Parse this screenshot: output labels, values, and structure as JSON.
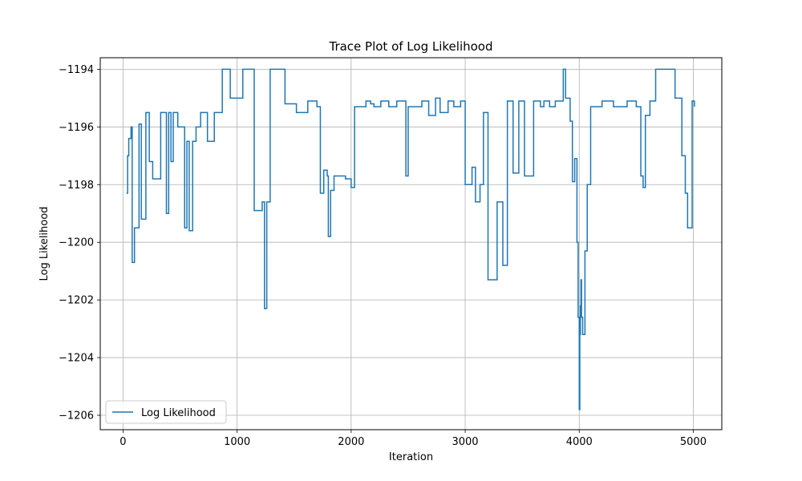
{
  "chart_data": {
    "type": "line",
    "title": "Trace Plot of Log Likelihood",
    "xlabel": "Iteration",
    "ylabel": "Log Likelihood",
    "xlim": [
      -200,
      5250
    ],
    "ylim": [
      -1206.5,
      -1193.6
    ],
    "xticks": [
      0,
      1000,
      2000,
      3000,
      4000,
      5000
    ],
    "yticks": [
      -1194,
      -1196,
      -1198,
      -1200,
      -1202,
      -1204,
      -1206
    ],
    "xtick_labels": [
      "0",
      "1000",
      "2000",
      "3000",
      "4000",
      "5000"
    ],
    "ytick_labels": [
      "−1194",
      "−1196",
      "−1198",
      "−1200",
      "−1202",
      "−1204",
      "−1206"
    ],
    "grid": true,
    "legend": "lower-left",
    "series": [
      {
        "name": "Log Likelihood",
        "color": "#1f77b4",
        "step": true,
        "x": [
          30,
          40,
          50,
          70,
          80,
          90,
          100,
          140,
          160,
          200,
          230,
          260,
          330,
          380,
          400,
          420,
          440,
          480,
          540,
          560,
          580,
          610,
          640,
          680,
          740,
          800,
          870,
          940,
          1050,
          1150,
          1220,
          1240,
          1260,
          1290,
          1320,
          1420,
          1520,
          1620,
          1700,
          1730,
          1760,
          1790,
          1800,
          1820,
          1850,
          1870,
          1950,
          2000,
          2030,
          2080,
          2130,
          2170,
          2200,
          2260,
          2330,
          2400,
          2480,
          2500,
          2540,
          2620,
          2680,
          2740,
          2780,
          2850,
          2900,
          2960,
          3000,
          3060,
          3090,
          3130,
          3160,
          3200,
          3280,
          3330,
          3370,
          3420,
          3470,
          3520,
          3600,
          3660,
          3690,
          3740,
          3790,
          3860,
          3880,
          3920,
          3940,
          3960,
          3980,
          3990,
          4000,
          4005,
          4010,
          4015,
          4020,
          4030,
          4050,
          4070,
          4100,
          4200,
          4300,
          4420,
          4500,
          4540,
          4560,
          4580,
          4620,
          4670,
          4750,
          4840,
          4900,
          4930,
          4950,
          4990,
          5010
        ],
        "y": [
          -1198.3,
          -1197.0,
          -1196.4,
          -1196.0,
          -1200.7,
          -1200.7,
          -1199.5,
          -1195.9,
          -1199.2,
          -1195.5,
          -1197.2,
          -1197.8,
          -1195.5,
          -1199.0,
          -1195.5,
          -1197.2,
          -1195.5,
          -1196.0,
          -1199.5,
          -1196.5,
          -1199.6,
          -1196.5,
          -1196.0,
          -1195.5,
          -1196.5,
          -1195.5,
          -1194.0,
          -1195.0,
          -1194.0,
          -1198.9,
          -1198.6,
          -1202.3,
          -1198.6,
          -1194.0,
          -1194.0,
          -1195.2,
          -1195.5,
          -1195.1,
          -1195.3,
          -1198.3,
          -1197.5,
          -1197.7,
          -1199.8,
          -1198.2,
          -1197.7,
          -1197.7,
          -1197.8,
          -1198.1,
          -1195.3,
          -1195.3,
          -1195.1,
          -1195.2,
          -1195.3,
          -1195.1,
          -1195.3,
          -1195.1,
          -1197.7,
          -1195.3,
          -1195.3,
          -1195.1,
          -1195.6,
          -1195.0,
          -1195.5,
          -1195.1,
          -1195.3,
          -1195.1,
          -1198.0,
          -1197.4,
          -1198.6,
          -1198.0,
          -1195.5,
          -1201.3,
          -1198.6,
          -1200.8,
          -1195.1,
          -1197.6,
          -1195.1,
          -1197.7,
          -1195.1,
          -1195.3,
          -1195.1,
          -1195.3,
          -1195.1,
          -1194.0,
          -1195.0,
          -1195.8,
          -1197.9,
          -1197.1,
          -1200.0,
          -1202.6,
          -1205.8,
          -1203.2,
          -1202.2,
          -1201.3,
          -1202.6,
          -1203.2,
          -1200.3,
          -1198.0,
          -1195.3,
          -1195.1,
          -1195.3,
          -1195.1,
          -1195.3,
          -1197.7,
          -1198.1,
          -1195.6,
          -1195.1,
          -1194.0,
          -1194.0,
          -1195.0,
          -1197.0,
          -1198.3,
          -1199.5,
          -1195.1,
          -1195.3
        ]
      }
    ]
  }
}
